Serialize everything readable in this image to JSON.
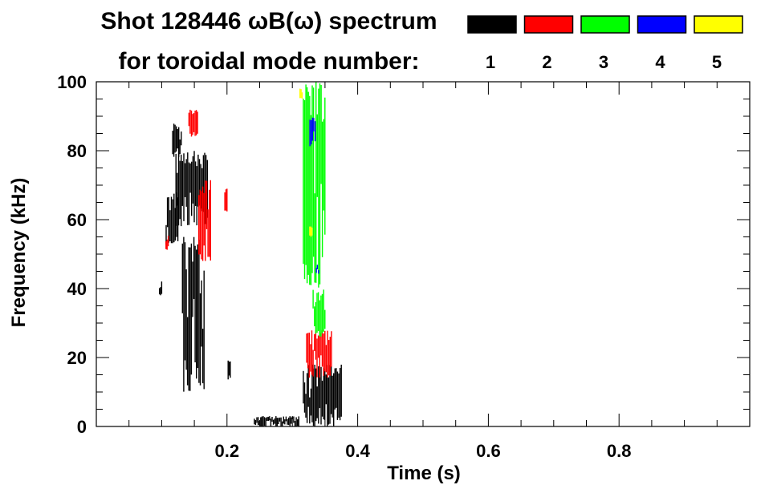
{
  "chart_data": {
    "type": "heatmap",
    "title": "Shot 128446 ωB(ω) spectrum",
    "subtitle": "for toroidal mode number:",
    "xlabel": "Time (s)",
    "ylabel": "Frequency (kHz)",
    "xlim": [
      0.0,
      1.0
    ],
    "ylim": [
      0,
      100
    ],
    "x_ticks": [
      0.2,
      0.4,
      0.6,
      0.8
    ],
    "x_tick_labels": [
      "0.2",
      "0.4",
      "0.6",
      "0.8"
    ],
    "y_ticks": [
      0,
      20,
      40,
      60,
      80,
      100
    ],
    "y_tick_labels": [
      "0",
      "20",
      "40",
      "60",
      "80",
      "100"
    ],
    "grid": false,
    "legend_position": "top-right",
    "legend": [
      {
        "mode": "1",
        "color": "#000000"
      },
      {
        "mode": "2",
        "color": "#ff0000"
      },
      {
        "mode": "3",
        "color": "#00ff00"
      },
      {
        "mode": "4",
        "color": "#0000ff"
      },
      {
        "mode": "5",
        "color": "#ffff00"
      }
    ],
    "features": [
      {
        "mode": 1,
        "color": "#000000",
        "t": [
          0.105,
          0.125
        ],
        "f": [
          52,
          68
        ]
      },
      {
        "mode": 1,
        "color": "#000000",
        "t": [
          0.12,
          0.17
        ],
        "f": [
          58,
          80
        ]
      },
      {
        "mode": 1,
        "color": "#000000",
        "t": [
          0.115,
          0.13
        ],
        "f": [
          78,
          88
        ]
      },
      {
        "mode": 1,
        "color": "#000000",
        "t": [
          0.13,
          0.165
        ],
        "f": [
          10,
          55
        ]
      },
      {
        "mode": 1,
        "color": "#000000",
        "t": [
          0.095,
          0.1
        ],
        "f": [
          38,
          43
        ]
      },
      {
        "mode": 1,
        "color": "#000000",
        "t": [
          0.315,
          0.375
        ],
        "f": [
          0,
          18
        ]
      },
      {
        "mode": 1,
        "color": "#000000",
        "t": [
          0.24,
          0.31
        ],
        "f": [
          0,
          3
        ]
      },
      {
        "mode": 1,
        "color": "#000000",
        "t": [
          0.2,
          0.205
        ],
        "f": [
          13,
          20
        ]
      },
      {
        "mode": 2,
        "color": "#ff0000",
        "t": [
          0.155,
          0.175
        ],
        "f": [
          48,
          72
        ]
      },
      {
        "mode": 2,
        "color": "#ff0000",
        "t": [
          0.14,
          0.155
        ],
        "f": [
          84,
          92
        ]
      },
      {
        "mode": 2,
        "color": "#ff0000",
        "t": [
          0.32,
          0.36
        ],
        "f": [
          14,
          28
        ]
      },
      {
        "mode": 2,
        "color": "#ff0000",
        "t": [
          0.105,
          0.11
        ],
        "f": [
          50,
          56
        ]
      },
      {
        "mode": 2,
        "color": "#ff0000",
        "t": [
          0.195,
          0.2
        ],
        "f": [
          62,
          69
        ]
      },
      {
        "mode": 3,
        "color": "#00ff00",
        "t": [
          0.315,
          0.35
        ],
        "f": [
          40,
          100
        ]
      },
      {
        "mode": 3,
        "color": "#00ff00",
        "t": [
          0.33,
          0.35
        ],
        "f": [
          26,
          40
        ]
      },
      {
        "mode": 4,
        "color": "#0000ff",
        "t": [
          0.325,
          0.335
        ],
        "f": [
          80,
          90
        ]
      },
      {
        "mode": 4,
        "color": "#0000ff",
        "t": [
          0.335,
          0.34
        ],
        "f": [
          44,
          47
        ]
      },
      {
        "mode": 5,
        "color": "#ffff00",
        "t": [
          0.31,
          0.315
        ],
        "f": [
          95,
          98
        ]
      },
      {
        "mode": 5,
        "color": "#ffff00",
        "t": [
          0.325,
          0.33
        ],
        "f": [
          55,
          58
        ]
      }
    ]
  }
}
